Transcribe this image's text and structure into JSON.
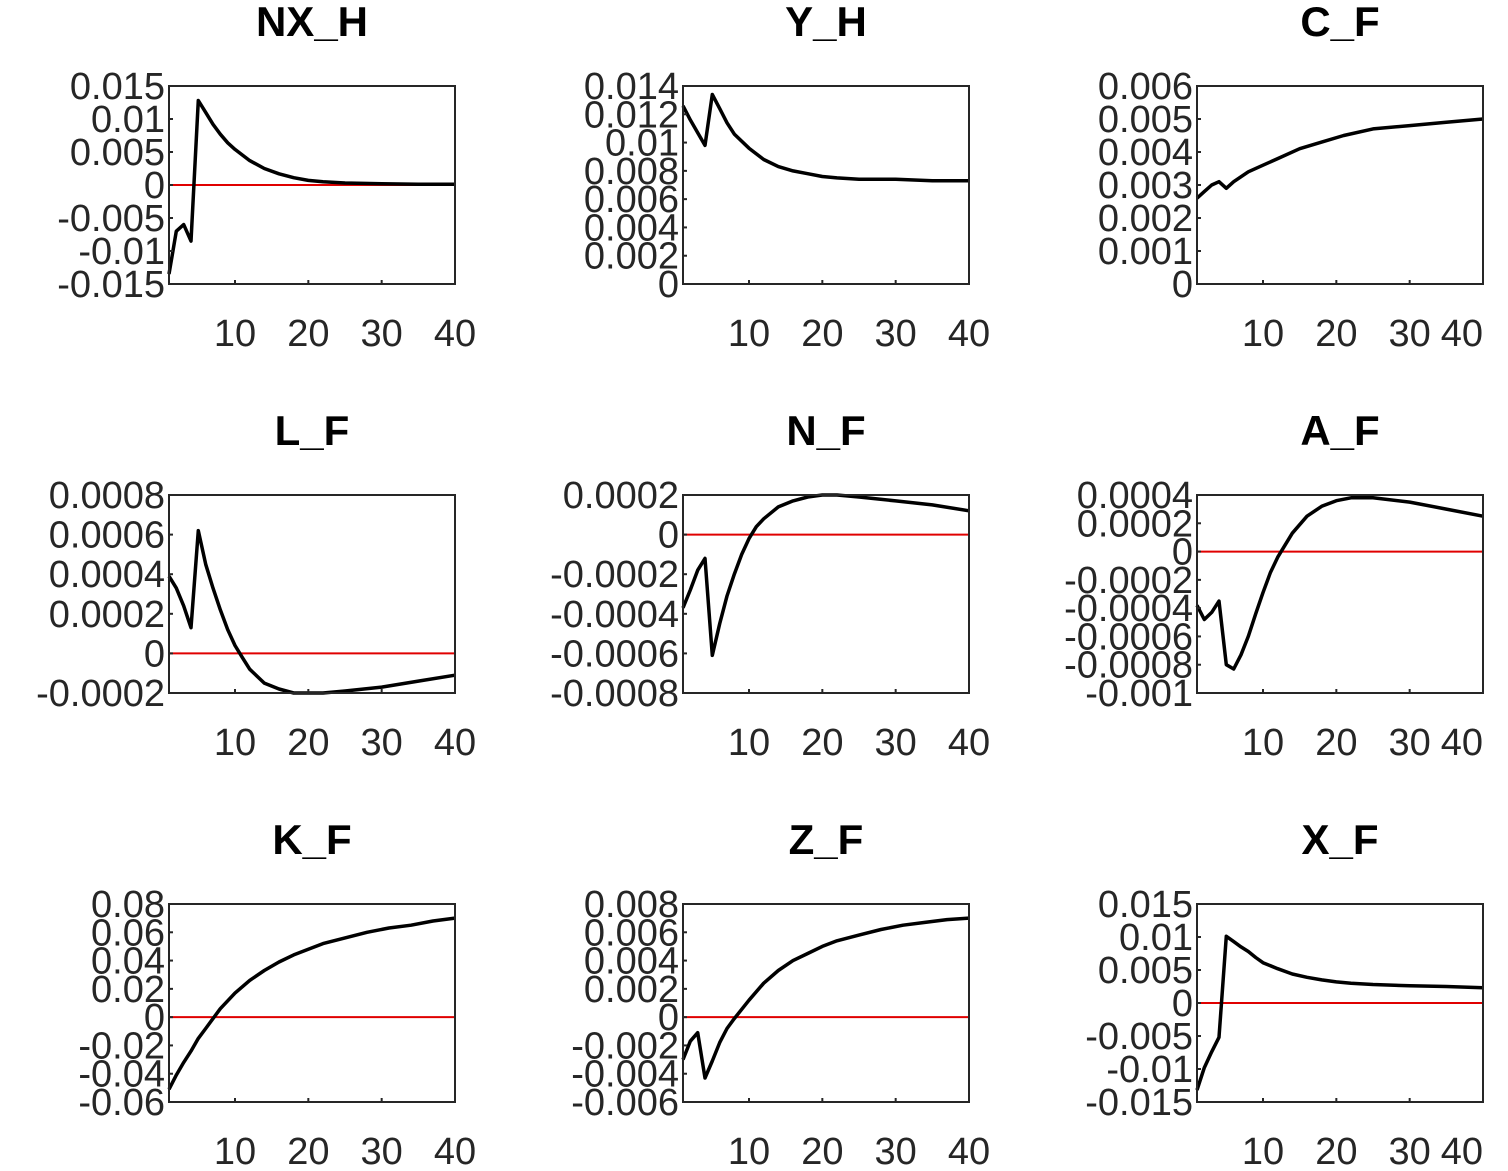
{
  "chart_data": [
    {
      "type": "line",
      "title": "NX_H",
      "xlim": [
        1,
        40
      ],
      "ylim": [
        -0.015,
        0.015
      ],
      "xticks": [
        "10",
        "20",
        "30",
        "40"
      ],
      "xtick_values": [
        10,
        20,
        30,
        40
      ],
      "yticks": [
        "0.015",
        "0.01",
        "0.005",
        "0",
        "-0.005",
        "-0.01",
        "-0.015"
      ],
      "ytick_values": [
        0.015,
        0.01,
        0.005,
        0,
        -0.005,
        -0.01,
        -0.015
      ],
      "x": [
        1,
        2,
        3,
        4,
        5,
        6,
        7,
        8,
        9,
        10,
        12,
        14,
        16,
        18,
        20,
        22,
        25,
        30,
        35,
        40
      ],
      "y": [
        -0.0135,
        -0.007,
        -0.006,
        -0.0085,
        0.0128,
        0.011,
        0.0092,
        0.0077,
        0.0064,
        0.0054,
        0.0037,
        0.0025,
        0.0017,
        0.0011,
        0.0007,
        0.0005,
        0.0003,
        0.0002,
        0.0001,
        0.0001
      ],
      "zero_line": 0
    },
    {
      "type": "line",
      "title": "Y_H",
      "xlim": [
        1,
        40
      ],
      "ylim": [
        0,
        0.014
      ],
      "xticks": [
        "10",
        "20",
        "30",
        "40"
      ],
      "xtick_values": [
        10,
        20,
        30,
        40
      ],
      "yticks": [
        "0.014",
        "0.012",
        "0.01",
        "0.008",
        "0.006",
        "0.004",
        "0.002",
        "0"
      ],
      "ytick_values": [
        0.014,
        0.012,
        0.01,
        0.008,
        0.006,
        0.004,
        0.002,
        0
      ],
      "x": [
        1,
        2,
        3,
        4,
        5,
        6,
        7,
        8,
        10,
        12,
        14,
        16,
        18,
        20,
        22,
        25,
        30,
        35,
        40
      ],
      "y": [
        0.0126,
        0.0116,
        0.0107,
        0.0098,
        0.0134,
        0.0124,
        0.0114,
        0.0106,
        0.0096,
        0.0088,
        0.0083,
        0.008,
        0.0078,
        0.0076,
        0.0075,
        0.0074,
        0.0074,
        0.0073,
        0.0073
      ],
      "zero_line": 0
    },
    {
      "type": "line",
      "title": "C_F",
      "xlim": [
        1,
        40
      ],
      "ylim": [
        0,
        0.006
      ],
      "xticks": [
        "10",
        "20",
        "30",
        "40"
      ],
      "xtick_values": [
        10,
        20,
        30,
        40
      ],
      "yticks": [
        "0.006",
        "0.005",
        "0.004",
        "0.003",
        "0.002",
        "0.001",
        "0"
      ],
      "ytick_values": [
        0.006,
        0.005,
        0.004,
        0.003,
        0.002,
        0.001,
        0
      ],
      "x": [
        1,
        2,
        3,
        4,
        5,
        6,
        8,
        10,
        12,
        15,
        18,
        21,
        25,
        30,
        35,
        40
      ],
      "y": [
        0.0026,
        0.0028,
        0.003,
        0.0031,
        0.0029,
        0.0031,
        0.0034,
        0.0036,
        0.0038,
        0.0041,
        0.0043,
        0.0045,
        0.0047,
        0.0048,
        0.0049,
        0.005
      ],
      "zero_line": 0
    },
    {
      "type": "line",
      "title": "L_F",
      "xlim": [
        1,
        40
      ],
      "ylim": [
        -0.0002,
        0.0008
      ],
      "xticks": [
        "10",
        "20",
        "30",
        "40"
      ],
      "xtick_values": [
        10,
        20,
        30,
        40
      ],
      "yticks": [
        "0.0008",
        "0.0006",
        "0.0004",
        "0.0002",
        "0",
        "-0.0002"
      ],
      "ytick_values": [
        0.0008,
        0.0006,
        0.0004,
        0.0002,
        0,
        -0.0002
      ],
      "x": [
        1,
        2,
        3,
        4,
        5,
        6,
        7,
        8,
        9,
        10,
        11,
        12,
        14,
        16,
        18,
        20,
        22,
        25,
        30,
        35,
        40
      ],
      "y": [
        0.00039,
        0.00033,
        0.00024,
        0.00013,
        0.00062,
        0.00045,
        0.00033,
        0.00022,
        0.00012,
        4e-05,
        -2e-05,
        -8e-05,
        -0.00015,
        -0.00018,
        -0.0002,
        -0.0002,
        -0.0002,
        -0.00019,
        -0.00017,
        -0.00014,
        -0.00011
      ],
      "zero_line": 0
    },
    {
      "type": "line",
      "title": "N_F",
      "xlim": [
        1,
        40
      ],
      "ylim": [
        -0.0008,
        0.0002
      ],
      "xticks": [
        "10",
        "20",
        "30",
        "40"
      ],
      "xtick_values": [
        10,
        20,
        30,
        40
      ],
      "yticks": [
        "0.0002",
        "0",
        "-0.0002",
        "-0.0004",
        "-0.0006",
        "-0.0008"
      ],
      "ytick_values": [
        0.0002,
        0,
        -0.0002,
        -0.0004,
        -0.0006,
        -0.0008
      ],
      "x": [
        1,
        2,
        3,
        4,
        5,
        6,
        7,
        8,
        9,
        10,
        11,
        12,
        14,
        16,
        18,
        20,
        22,
        25,
        30,
        35,
        40
      ],
      "y": [
        -0.00037,
        -0.00028,
        -0.00018,
        -0.00012,
        -0.00061,
        -0.00045,
        -0.00031,
        -0.0002,
        -0.0001,
        -2e-05,
        4e-05,
        8e-05,
        0.00014,
        0.00017,
        0.00019,
        0.0002,
        0.0002,
        0.00019,
        0.00017,
        0.00015,
        0.00012
      ],
      "zero_line": 0
    },
    {
      "type": "line",
      "title": "A_F",
      "xlim": [
        1,
        40
      ],
      "ylim": [
        -0.001,
        0.0004
      ],
      "xticks": [
        "10",
        "20",
        "30",
        "40"
      ],
      "xtick_values": [
        10,
        20,
        30,
        40
      ],
      "yticks": [
        "0.0004",
        "0.0002",
        "0",
        "-0.0002",
        "-0.0004",
        "-0.0006",
        "-0.0008",
        "-0.001"
      ],
      "ytick_values": [
        0.0004,
        0.0002,
        0,
        -0.0002,
        -0.0004,
        -0.0006,
        -0.0008,
        -0.001
      ],
      "x": [
        1,
        2,
        3,
        4,
        5,
        6,
        7,
        8,
        9,
        10,
        11,
        12,
        14,
        16,
        18,
        20,
        22,
        25,
        30,
        35,
        40
      ],
      "y": [
        -0.00038,
        -0.00048,
        -0.00043,
        -0.00035,
        -0.0008,
        -0.00083,
        -0.00073,
        -0.0006,
        -0.00044,
        -0.00029,
        -0.00015,
        -4e-05,
        0.00013,
        0.00025,
        0.00032,
        0.00036,
        0.00038,
        0.00038,
        0.00035,
        0.0003,
        0.00025
      ],
      "zero_line": 0
    },
    {
      "type": "line",
      "title": "K_F",
      "xlim": [
        1,
        40
      ],
      "ylim": [
        -0.06,
        0.08
      ],
      "xticks": [
        "10",
        "20",
        "30",
        "40"
      ],
      "xtick_values": [
        10,
        20,
        30,
        40
      ],
      "yticks": [
        "0.08",
        "0.06",
        "0.04",
        "0.02",
        "0",
        "-0.02",
        "-0.04",
        "-0.06"
      ],
      "ytick_values": [
        0.08,
        0.06,
        0.04,
        0.02,
        0,
        -0.02,
        -0.04,
        -0.06
      ],
      "x": [
        1,
        2,
        3,
        4,
        5,
        6,
        7,
        8,
        10,
        12,
        14,
        16,
        18,
        20,
        22,
        25,
        28,
        31,
        34,
        37,
        40
      ],
      "y": [
        -0.051,
        -0.041,
        -0.032,
        -0.024,
        -0.015,
        -0.008,
        -0.001,
        0.006,
        0.017,
        0.026,
        0.033,
        0.039,
        0.044,
        0.048,
        0.052,
        0.056,
        0.06,
        0.063,
        0.065,
        0.068,
        0.07
      ],
      "zero_line": 0
    },
    {
      "type": "line",
      "title": "Z_F",
      "xlim": [
        1,
        40
      ],
      "ylim": [
        -0.006,
        0.008
      ],
      "xticks": [
        "10",
        "20",
        "30",
        "40"
      ],
      "xtick_values": [
        10,
        20,
        30,
        40
      ],
      "yticks": [
        "0.008",
        "0.006",
        "0.004",
        "0.002",
        "0",
        "-0.002",
        "-0.004",
        "-0.006"
      ],
      "ytick_values": [
        0.008,
        0.006,
        0.004,
        0.002,
        0,
        -0.002,
        -0.004,
        -0.006
      ],
      "x": [
        1,
        2,
        3,
        4,
        5,
        6,
        7,
        8,
        10,
        12,
        14,
        16,
        18,
        20,
        22,
        25,
        28,
        31,
        34,
        37,
        40
      ],
      "y": [
        -0.003,
        -0.0017,
        -0.0011,
        -0.0043,
        -0.0031,
        -0.0018,
        -0.0008,
        -0.0001,
        0.0012,
        0.0024,
        0.0033,
        0.004,
        0.0045,
        0.005,
        0.0054,
        0.0058,
        0.0062,
        0.0065,
        0.0067,
        0.0069,
        0.007
      ],
      "zero_line": 0
    },
    {
      "type": "line",
      "title": "X_F",
      "xlim": [
        1,
        40
      ],
      "ylim": [
        -0.015,
        0.015
      ],
      "xticks": [
        "10",
        "20",
        "30",
        "40"
      ],
      "xtick_values": [
        10,
        20,
        30,
        40
      ],
      "yticks": [
        "0.015",
        "0.01",
        "0.005",
        "0",
        "-0.005",
        "-0.01",
        "-0.015"
      ],
      "ytick_values": [
        0.015,
        0.01,
        0.005,
        0,
        -0.005,
        -0.01,
        -0.015
      ],
      "x": [
        1,
        2,
        3,
        4,
        5,
        6,
        7,
        8,
        9,
        10,
        12,
        14,
        16,
        18,
        20,
        22,
        25,
        30,
        35,
        40
      ],
      "y": [
        -0.0132,
        -0.0098,
        -0.0074,
        -0.0052,
        0.0101,
        0.0093,
        0.0085,
        0.0078,
        0.0069,
        0.0061,
        0.0052,
        0.0044,
        0.0039,
        0.0035,
        0.0032,
        0.003,
        0.0028,
        0.0026,
        0.0025,
        0.0023
      ],
      "zero_line": 0
    }
  ]
}
